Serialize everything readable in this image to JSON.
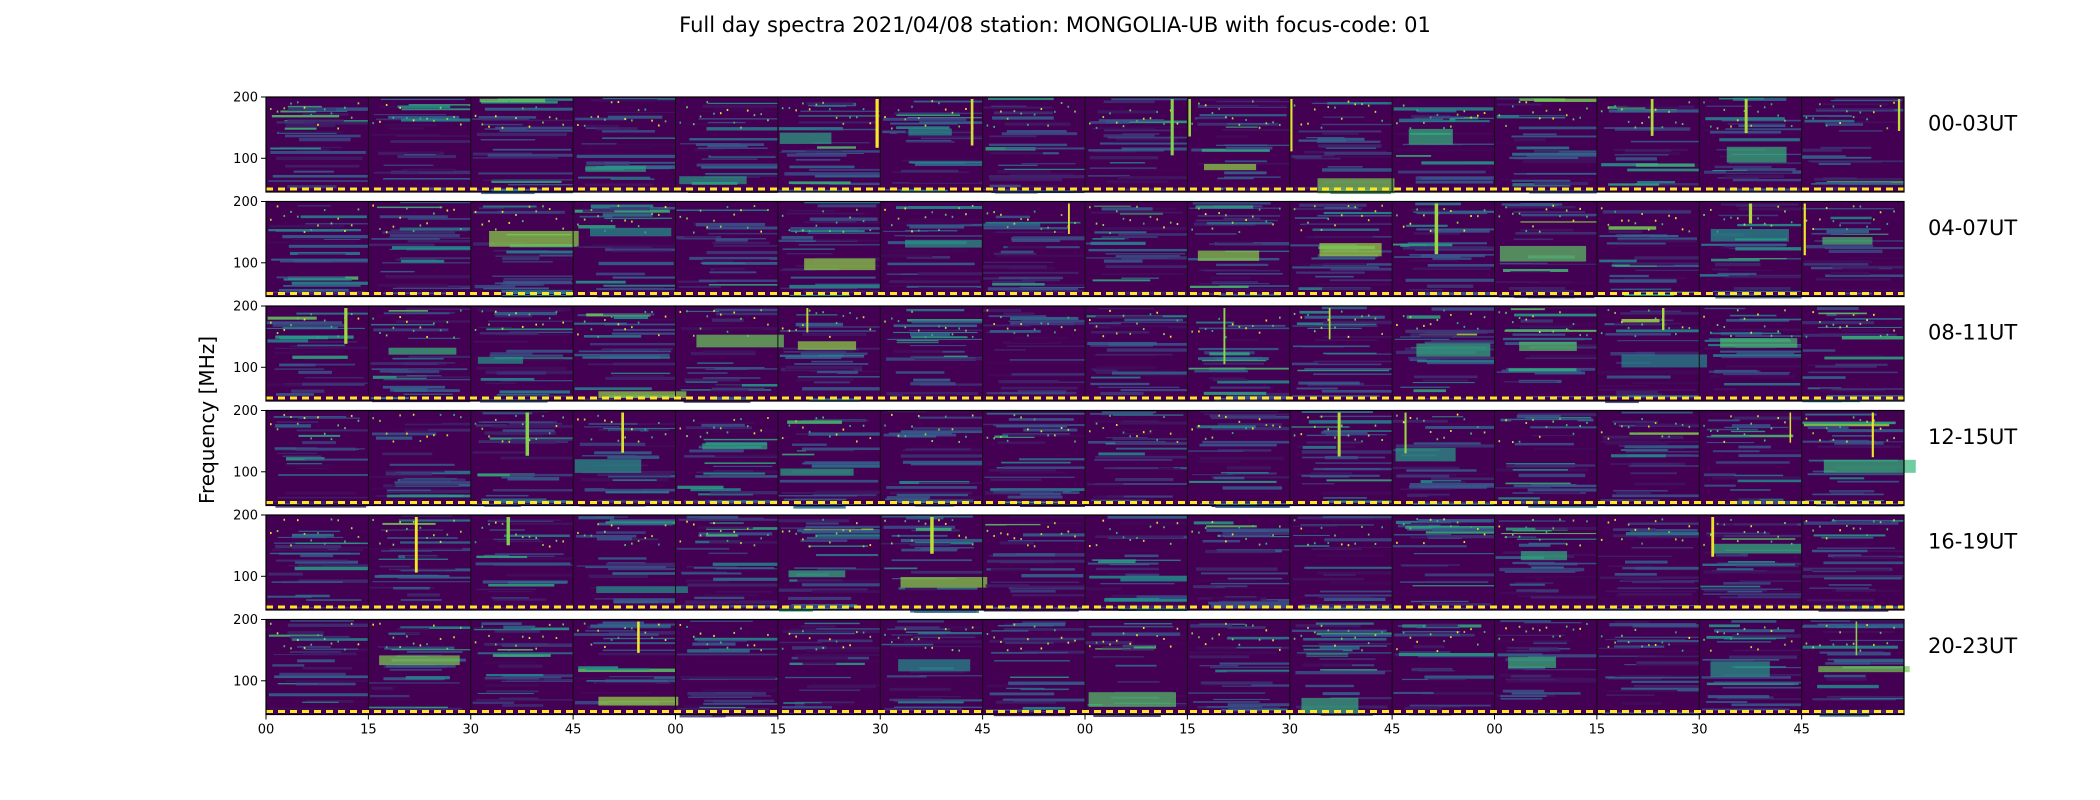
{
  "chart_data": {
    "type": "heatmap",
    "title": "Full day spectra 2021/04/08 station: MONGOLIA-UB with focus-code: 01",
    "ylabel": "Frequency [MHz]",
    "xlabel": "",
    "ylim": [
      45,
      200
    ],
    "y_ticks": [
      "100",
      "200"
    ],
    "x_ticks": [
      "00",
      "15",
      "30",
      "45",
      "00",
      "15",
      "30",
      "45",
      "00",
      "15",
      "30",
      "45",
      "00",
      "15",
      "30",
      "45"
    ],
    "rows": [
      "00-03UT",
      "04-07UT",
      "08-11UT",
      "12-15UT",
      "16-19UT",
      "20-23UT"
    ],
    "panels_per_row": 16,
    "colormap": [
      "#440154",
      "#31688e",
      "#35b779",
      "#fde725"
    ],
    "marker_color": "#fde725",
    "grid": false
  }
}
